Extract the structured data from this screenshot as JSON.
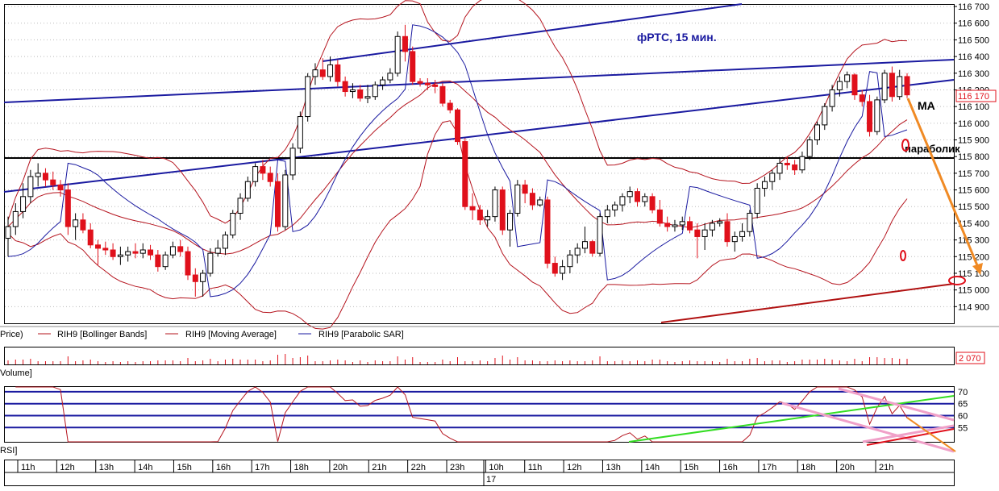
{
  "header": {
    "title": "фРТС,  15 мин.",
    "ma_label": "МА",
    "parabolic_label": "параболик"
  },
  "legend": {
    "price": "Price)",
    "bollinger": "RIH9 [Bollinger Bands]",
    "moving_average": "RIH9 [Moving Average]",
    "parabolic_sar": "RIH9 [Parabolic SAR]"
  },
  "panes": {
    "volume_label": "Volume]",
    "rsi_label": "RSI]"
  },
  "colors": {
    "up_candle": "#ffffff",
    "down_candle": "#e0101b",
    "indicator": "#b5141e",
    "sar": "#1a1aa0",
    "channel": "#1a1aa0",
    "level": "#000000",
    "forecast": "#f08a24",
    "support_line": "#b01010",
    "rsi_green": "#33dd22",
    "rsi_pink": "#f0a0c8"
  },
  "chart_data": [
    {
      "type": "candlestick",
      "ylim": [
        114800,
        116710
      ],
      "y_ticks": [
        "116 700",
        "116 600",
        "116 500",
        "116 400",
        "116 300",
        "116 200",
        "116 100",
        "116 000",
        "115 900",
        "115 800",
        "115 700",
        "115 600",
        "115 500",
        "115 400",
        "115 300",
        "115 200",
        "115 100",
        "115 000",
        "114 900"
      ],
      "last_price": "116 170",
      "horizontal_level": 115800,
      "time_labels": [
        "11h",
        "12h",
        "13h",
        "14h",
        "15h",
        "16h",
        "17h",
        "18h",
        "20h",
        "21h",
        "22h",
        "23h",
        "10h",
        "11h",
        "12h",
        "13h",
        "14h",
        "15h",
        "16h",
        "17h",
        "18h",
        "20h",
        "21h"
      ],
      "date_label": "17",
      "candles": [
        {
          "o": 115310,
          "h": 115440,
          "l": 115200,
          "c": 115380
        },
        {
          "o": 115380,
          "h": 115520,
          "l": 115330,
          "c": 115470
        },
        {
          "o": 115470,
          "h": 115640,
          "l": 115430,
          "c": 115560
        },
        {
          "o": 115560,
          "h": 115720,
          "l": 115520,
          "c": 115680
        },
        {
          "o": 115680,
          "h": 115760,
          "l": 115620,
          "c": 115700
        },
        {
          "o": 115700,
          "h": 115730,
          "l": 115620,
          "c": 115660
        },
        {
          "o": 115660,
          "h": 115710,
          "l": 115600,
          "c": 115630
        },
        {
          "o": 115630,
          "h": 115660,
          "l": 115560,
          "c": 115600
        },
        {
          "o": 115600,
          "h": 115640,
          "l": 115330,
          "c": 115380
        },
        {
          "o": 115380,
          "h": 115460,
          "l": 115300,
          "c": 115420
        },
        {
          "o": 115420,
          "h": 115460,
          "l": 115340,
          "c": 115360
        },
        {
          "o": 115360,
          "h": 115400,
          "l": 115250,
          "c": 115270
        },
        {
          "o": 115270,
          "h": 115300,
          "l": 115150,
          "c": 115250
        },
        {
          "o": 115250,
          "h": 115290,
          "l": 115210,
          "c": 115240
        },
        {
          "o": 115240,
          "h": 115280,
          "l": 115180,
          "c": 115200
        },
        {
          "o": 115200,
          "h": 115260,
          "l": 115150,
          "c": 115210
        },
        {
          "o": 115210,
          "h": 115260,
          "l": 115170,
          "c": 115230
        },
        {
          "o": 115230,
          "h": 115280,
          "l": 115190,
          "c": 115220
        },
        {
          "o": 115220,
          "h": 115280,
          "l": 115190,
          "c": 115240
        },
        {
          "o": 115240,
          "h": 115270,
          "l": 115180,
          "c": 115210
        },
        {
          "o": 115210,
          "h": 115240,
          "l": 115110,
          "c": 115140
        },
        {
          "o": 115140,
          "h": 115230,
          "l": 115120,
          "c": 115210
        },
        {
          "o": 115210,
          "h": 115290,
          "l": 115190,
          "c": 115260
        },
        {
          "o": 115260,
          "h": 115300,
          "l": 115200,
          "c": 115230
        },
        {
          "o": 115230,
          "h": 115260,
          "l": 115060,
          "c": 115090
        },
        {
          "o": 115090,
          "h": 115130,
          "l": 114960,
          "c": 115050
        },
        {
          "o": 115050,
          "h": 115120,
          "l": 114960,
          "c": 115100
        },
        {
          "o": 115100,
          "h": 115250,
          "l": 115080,
          "c": 115220
        },
        {
          "o": 115220,
          "h": 115300,
          "l": 115200,
          "c": 115250
        },
        {
          "o": 115250,
          "h": 115350,
          "l": 115210,
          "c": 115330
        },
        {
          "o": 115330,
          "h": 115480,
          "l": 115310,
          "c": 115460
        },
        {
          "o": 115460,
          "h": 115580,
          "l": 115420,
          "c": 115550
        },
        {
          "o": 115550,
          "h": 115680,
          "l": 115530,
          "c": 115650
        },
        {
          "o": 115650,
          "h": 115760,
          "l": 115620,
          "c": 115740
        },
        {
          "o": 115740,
          "h": 115780,
          "l": 115660,
          "c": 115700
        },
        {
          "o": 115700,
          "h": 115740,
          "l": 115620,
          "c": 115650
        },
        {
          "o": 115650,
          "h": 115700,
          "l": 115350,
          "c": 115380
        },
        {
          "o": 115380,
          "h": 115720,
          "l": 115360,
          "c": 115690
        },
        {
          "o": 115690,
          "h": 115880,
          "l": 115660,
          "c": 115850
        },
        {
          "o": 115850,
          "h": 116070,
          "l": 115820,
          "c": 116040
        },
        {
          "o": 116040,
          "h": 116300,
          "l": 116010,
          "c": 116280
        },
        {
          "o": 116280,
          "h": 116360,
          "l": 116230,
          "c": 116320
        },
        {
          "o": 116320,
          "h": 116390,
          "l": 116260,
          "c": 116280
        },
        {
          "o": 116280,
          "h": 116400,
          "l": 116250,
          "c": 116350
        },
        {
          "o": 116350,
          "h": 116380,
          "l": 116220,
          "c": 116250
        },
        {
          "o": 116250,
          "h": 116280,
          "l": 116160,
          "c": 116190
        },
        {
          "o": 116190,
          "h": 116240,
          "l": 116150,
          "c": 116200
        },
        {
          "o": 116200,
          "h": 116230,
          "l": 116130,
          "c": 116150
        },
        {
          "o": 116150,
          "h": 116230,
          "l": 116120,
          "c": 116160
        },
        {
          "o": 116160,
          "h": 116250,
          "l": 116140,
          "c": 116230
        },
        {
          "o": 116230,
          "h": 116280,
          "l": 116200,
          "c": 116260
        },
        {
          "o": 116260,
          "h": 116330,
          "l": 116240,
          "c": 116300
        },
        {
          "o": 116300,
          "h": 116550,
          "l": 116280,
          "c": 116520
        },
        {
          "o": 116520,
          "h": 116590,
          "l": 116370,
          "c": 116430
        },
        {
          "o": 116430,
          "h": 116460,
          "l": 116230,
          "c": 116250
        },
        {
          "o": 116250,
          "h": 116270,
          "l": 116220,
          "c": 116240
        },
        {
          "o": 116240,
          "h": 116270,
          "l": 116200,
          "c": 116230
        },
        {
          "o": 116230,
          "h": 116260,
          "l": 116180,
          "c": 116220
        },
        {
          "o": 116220,
          "h": 116240,
          "l": 116100,
          "c": 116120
        },
        {
          "o": 116120,
          "h": 116140,
          "l": 116060,
          "c": 116080
        },
        {
          "o": 116080,
          "h": 116090,
          "l": 115870,
          "c": 115890
        },
        {
          "o": 115890,
          "h": 115910,
          "l": 115480,
          "c": 115500
        },
        {
          "o": 115500,
          "h": 115580,
          "l": 115420,
          "c": 115480
        },
        {
          "o": 115480,
          "h": 115510,
          "l": 115390,
          "c": 115420
        },
        {
          "o": 115420,
          "h": 115480,
          "l": 115380,
          "c": 115440
        },
        {
          "o": 115440,
          "h": 115620,
          "l": 115410,
          "c": 115600
        },
        {
          "o": 115600,
          "h": 115620,
          "l": 115330,
          "c": 115360
        },
        {
          "o": 115360,
          "h": 115480,
          "l": 115260,
          "c": 115460
        },
        {
          "o": 115460,
          "h": 115660,
          "l": 115440,
          "c": 115630
        },
        {
          "o": 115630,
          "h": 115660,
          "l": 115520,
          "c": 115580
        },
        {
          "o": 115580,
          "h": 115610,
          "l": 115480,
          "c": 115510
        },
        {
          "o": 115510,
          "h": 115560,
          "l": 115500,
          "c": 115540
        },
        {
          "o": 115540,
          "h": 115560,
          "l": 115130,
          "c": 115160
        },
        {
          "o": 115160,
          "h": 115200,
          "l": 115080,
          "c": 115100
        },
        {
          "o": 115100,
          "h": 115180,
          "l": 115060,
          "c": 115140
        },
        {
          "o": 115140,
          "h": 115240,
          "l": 115100,
          "c": 115210
        },
        {
          "o": 115210,
          "h": 115280,
          "l": 115160,
          "c": 115250
        },
        {
          "o": 115250,
          "h": 115380,
          "l": 115220,
          "c": 115290
        },
        {
          "o": 115290,
          "h": 115300,
          "l": 115200,
          "c": 115220
        },
        {
          "o": 115220,
          "h": 115460,
          "l": 115200,
          "c": 115440
        },
        {
          "o": 115440,
          "h": 115510,
          "l": 115400,
          "c": 115480
        },
        {
          "o": 115480,
          "h": 115530,
          "l": 115440,
          "c": 115510
        },
        {
          "o": 115510,
          "h": 115580,
          "l": 115470,
          "c": 115560
        },
        {
          "o": 115560,
          "h": 115620,
          "l": 115520,
          "c": 115590
        },
        {
          "o": 115590,
          "h": 115610,
          "l": 115500,
          "c": 115530
        },
        {
          "o": 115530,
          "h": 115580,
          "l": 115500,
          "c": 115560
        },
        {
          "o": 115560,
          "h": 115580,
          "l": 115460,
          "c": 115480
        },
        {
          "o": 115480,
          "h": 115540,
          "l": 115380,
          "c": 115400
        },
        {
          "o": 115400,
          "h": 115440,
          "l": 115350,
          "c": 115380
        },
        {
          "o": 115380,
          "h": 115420,
          "l": 115350,
          "c": 115390
        },
        {
          "o": 115390,
          "h": 115440,
          "l": 115360,
          "c": 115410
        },
        {
          "o": 115410,
          "h": 115440,
          "l": 115340,
          "c": 115360
        },
        {
          "o": 115360,
          "h": 115400,
          "l": 115190,
          "c": 115320
        },
        {
          "o": 115320,
          "h": 115400,
          "l": 115240,
          "c": 115360
        },
        {
          "o": 115360,
          "h": 115420,
          "l": 115320,
          "c": 115400
        },
        {
          "o": 115400,
          "h": 115430,
          "l": 115380,
          "c": 115410
        },
        {
          "o": 115410,
          "h": 115460,
          "l": 115260,
          "c": 115290
        },
        {
          "o": 115290,
          "h": 115350,
          "l": 115230,
          "c": 115320
        },
        {
          "o": 115320,
          "h": 115400,
          "l": 115290,
          "c": 115350
        },
        {
          "o": 115350,
          "h": 115480,
          "l": 115320,
          "c": 115460
        },
        {
          "o": 115460,
          "h": 115640,
          "l": 115430,
          "c": 115610
        },
        {
          "o": 115610,
          "h": 115680,
          "l": 115560,
          "c": 115650
        },
        {
          "o": 115650,
          "h": 115720,
          "l": 115600,
          "c": 115700
        },
        {
          "o": 115700,
          "h": 115790,
          "l": 115660,
          "c": 115760
        },
        {
          "o": 115760,
          "h": 115800,
          "l": 115720,
          "c": 115750
        },
        {
          "o": 115750,
          "h": 115780,
          "l": 115690,
          "c": 115720
        },
        {
          "o": 115720,
          "h": 115830,
          "l": 115700,
          "c": 115800
        },
        {
          "o": 115800,
          "h": 115920,
          "l": 115780,
          "c": 115900
        },
        {
          "o": 115900,
          "h": 116010,
          "l": 115870,
          "c": 115990
        },
        {
          "o": 115990,
          "h": 116120,
          "l": 115960,
          "c": 116100
        },
        {
          "o": 116100,
          "h": 116230,
          "l": 116070,
          "c": 116200
        },
        {
          "o": 116200,
          "h": 116280,
          "l": 116160,
          "c": 116250
        },
        {
          "o": 116250,
          "h": 116310,
          "l": 116210,
          "c": 116290
        },
        {
          "o": 116290,
          "h": 116300,
          "l": 116140,
          "c": 116170
        },
        {
          "o": 116170,
          "h": 116200,
          "l": 116100,
          "c": 116130
        },
        {
          "o": 116130,
          "h": 116170,
          "l": 115920,
          "c": 115950
        },
        {
          "o": 115950,
          "h": 116160,
          "l": 115930,
          "c": 116140
        },
        {
          "o": 116140,
          "h": 116320,
          "l": 116120,
          "c": 116300
        },
        {
          "o": 116300,
          "h": 116340,
          "l": 116130,
          "c": 116160
        },
        {
          "o": 116160,
          "h": 116320,
          "l": 116140,
          "c": 116280
        },
        {
          "o": 116280,
          "h": 116300,
          "l": 116150,
          "c": 116170
        }
      ]
    },
    {
      "type": "bar",
      "name": "Volume",
      "last_value": "2 070"
    },
    {
      "type": "line",
      "name": "RSI",
      "y_ticks": [
        "70",
        "65",
        "60",
        "55"
      ],
      "ylim": [
        49,
        72
      ],
      "levels": [
        70,
        65,
        60,
        55
      ]
    }
  ]
}
